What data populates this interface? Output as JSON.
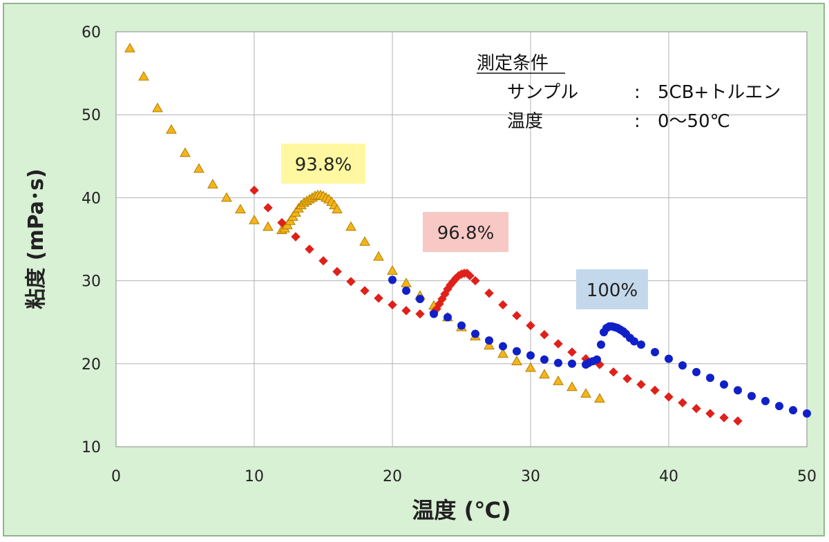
{
  "chart_data": {
    "type": "scatter",
    "xlabel": "温度 (℃)",
    "ylabel": "粘度 (mPa･s)",
    "xlim": [
      0,
      50
    ],
    "ylim": [
      10,
      60
    ],
    "xticks": [
      0,
      10,
      20,
      30,
      40,
      50
    ],
    "yticks": [
      10,
      20,
      30,
      40,
      50,
      60
    ],
    "grid": true,
    "conditions": {
      "heading": "測定条件",
      "rows": [
        {
          "label": "サンプル",
          "sep": ":",
          "value": "5CB+トルエン"
        },
        {
          "label": "温度",
          "sep": ":",
          "value": "0〜50℃"
        }
      ]
    },
    "series": [
      {
        "label": "93.8%",
        "marker": "triangle",
        "color": "#f4b41a",
        "stroke": "#b07d00",
        "label_bg": "#fff8a0",
        "points": [
          [
            1,
            58.0
          ],
          [
            2,
            54.6
          ],
          [
            3,
            50.8
          ],
          [
            4,
            48.2
          ],
          [
            5,
            45.4
          ],
          [
            6,
            43.5
          ],
          [
            7,
            41.6
          ],
          [
            8,
            40.0
          ],
          [
            9,
            38.6
          ],
          [
            10,
            37.3
          ],
          [
            11,
            36.5
          ],
          [
            12.0,
            36.1
          ],
          [
            12.2,
            36.3
          ],
          [
            12.4,
            36.7
          ],
          [
            12.6,
            37.2
          ],
          [
            12.8,
            37.7
          ],
          [
            13.0,
            38.2
          ],
          [
            13.2,
            38.7
          ],
          [
            13.4,
            39.1
          ],
          [
            13.6,
            39.4
          ],
          [
            13.8,
            39.6
          ],
          [
            14.0,
            39.8
          ],
          [
            14.2,
            40.0
          ],
          [
            14.4,
            40.2
          ],
          [
            14.6,
            40.3
          ],
          [
            14.8,
            40.3
          ],
          [
            15.0,
            40.2
          ],
          [
            15.2,
            40.0
          ],
          [
            15.4,
            39.8
          ],
          [
            15.6,
            39.5
          ],
          [
            15.8,
            39.1
          ],
          [
            16.0,
            38.6
          ],
          [
            17,
            36.5
          ],
          [
            18,
            34.7
          ],
          [
            19,
            32.9
          ],
          [
            20,
            31.2
          ],
          [
            21,
            29.7
          ],
          [
            22,
            28.2
          ],
          [
            23,
            27.0
          ],
          [
            24,
            25.6
          ],
          [
            25,
            24.4
          ],
          [
            26,
            23.3
          ],
          [
            27,
            22.2
          ],
          [
            28,
            21.2
          ],
          [
            29,
            20.3
          ],
          [
            30,
            19.5
          ],
          [
            31,
            18.7
          ],
          [
            32,
            17.9
          ],
          [
            33,
            17.2
          ],
          [
            34,
            16.4
          ],
          [
            35,
            15.8
          ]
        ]
      },
      {
        "label": "96.8%",
        "marker": "diamond",
        "color": "#e0201a",
        "stroke": "#e0201a",
        "label_bg": "#f8c8c4",
        "points": [
          [
            10,
            40.9
          ],
          [
            11,
            38.8
          ],
          [
            12,
            37.0
          ],
          [
            13,
            35.3
          ],
          [
            14,
            33.8
          ],
          [
            15,
            32.4
          ],
          [
            16,
            31.1
          ],
          [
            17,
            29.9
          ],
          [
            18,
            28.8
          ],
          [
            19,
            27.9
          ],
          [
            20,
            27.1
          ],
          [
            21,
            26.4
          ],
          [
            22,
            26.0
          ],
          [
            23.0,
            26.2
          ],
          [
            23.2,
            26.6
          ],
          [
            23.4,
            27.2
          ],
          [
            23.6,
            27.8
          ],
          [
            23.8,
            28.4
          ],
          [
            24.0,
            29.0
          ],
          [
            24.2,
            29.5
          ],
          [
            24.4,
            29.9
          ],
          [
            24.6,
            30.3
          ],
          [
            24.8,
            30.6
          ],
          [
            25.0,
            30.8
          ],
          [
            25.2,
            30.9
          ],
          [
            25.4,
            30.9
          ],
          [
            25.6,
            30.6
          ],
          [
            26,
            30.0
          ],
          [
            27,
            28.5
          ],
          [
            28,
            27.1
          ],
          [
            29,
            25.8
          ],
          [
            30,
            24.6
          ],
          [
            31,
            23.5
          ],
          [
            32,
            22.4
          ],
          [
            33,
            21.4
          ],
          [
            34,
            20.6
          ],
          [
            35,
            19.9
          ],
          [
            36,
            19.0
          ],
          [
            37,
            18.2
          ],
          [
            38,
            17.5
          ],
          [
            39,
            16.8
          ],
          [
            40,
            16.0
          ],
          [
            41,
            15.3
          ],
          [
            42,
            14.6
          ],
          [
            43,
            14.0
          ],
          [
            44,
            13.5
          ],
          [
            45,
            13.1
          ]
        ]
      },
      {
        "label": "100%",
        "marker": "circle",
        "color": "#1020c8",
        "stroke": "#1020c8",
        "label_bg": "#c4d8ec",
        "points": [
          [
            20,
            30.1
          ],
          [
            21,
            28.8
          ],
          [
            22,
            27.8
          ],
          [
            23,
            26.0
          ],
          [
            24,
            25.6
          ],
          [
            25,
            24.6
          ],
          [
            26,
            23.6
          ],
          [
            27,
            22.8
          ],
          [
            28,
            22.1
          ],
          [
            29,
            21.5
          ],
          [
            30,
            21.0
          ],
          [
            31,
            20.5
          ],
          [
            32,
            20.1
          ],
          [
            33,
            20.0
          ],
          [
            34,
            19.9
          ],
          [
            34.2,
            20.1
          ],
          [
            34.5,
            20.3
          ],
          [
            34.8,
            20.5
          ],
          [
            35.1,
            22.3
          ],
          [
            35.3,
            23.8
          ],
          [
            35.5,
            24.3
          ],
          [
            35.7,
            24.5
          ],
          [
            35.9,
            24.5
          ],
          [
            36.1,
            24.4
          ],
          [
            36.3,
            24.3
          ],
          [
            36.5,
            24.1
          ],
          [
            36.7,
            23.9
          ],
          [
            36.9,
            23.6
          ],
          [
            37.2,
            23.1
          ],
          [
            37.5,
            22.7
          ],
          [
            38,
            22.3
          ],
          [
            39,
            21.4
          ],
          [
            40,
            20.6
          ],
          [
            41,
            19.8
          ],
          [
            42,
            19.0
          ],
          [
            43,
            18.3
          ],
          [
            44,
            17.5
          ],
          [
            45,
            16.8
          ],
          [
            46,
            16.1
          ],
          [
            47,
            15.5
          ],
          [
            48,
            14.9
          ],
          [
            49,
            14.4
          ],
          [
            50,
            14.0
          ]
        ]
      }
    ]
  }
}
